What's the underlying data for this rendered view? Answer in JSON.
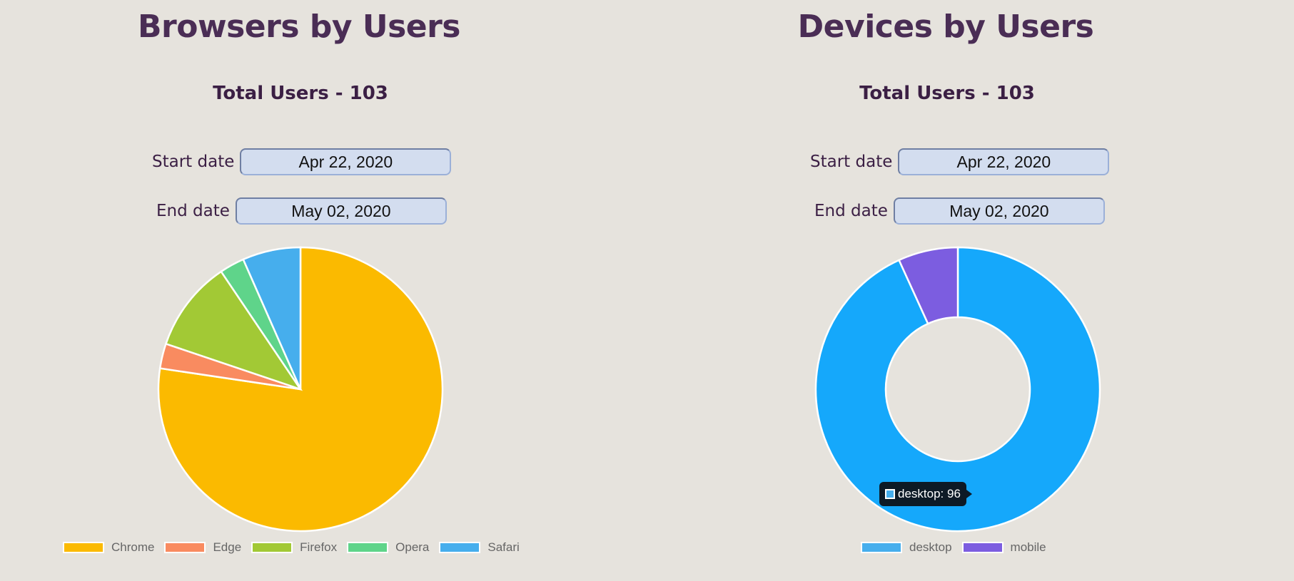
{
  "chart_data": [
    {
      "type": "pie",
      "title": "Browsers by Users",
      "subtitle": "Total Users - 103",
      "categories": [
        "Chrome",
        "Edge",
        "Firefox",
        "Opera",
        "Safari"
      ],
      "values": [
        82,
        3,
        11,
        3,
        7
      ],
      "colors": [
        "#fbba00",
        "#f98b60",
        "#a2c935",
        "#5fd48a",
        "#46aeed"
      ],
      "legend_position": "bottom"
    },
    {
      "type": "doughnut",
      "title": "Devices by Users",
      "subtitle": "Total Users - 103",
      "categories": [
        "desktop",
        "mobile"
      ],
      "values": [
        96,
        7
      ],
      "colors": [
        "#15a8fb",
        "#7c5de0"
      ],
      "legend_colors": [
        "#46aeed",
        "#7c5de0"
      ],
      "legend_position": "bottom",
      "tooltip": "desktop: 96"
    }
  ],
  "browsers": {
    "title": "Browsers by Users",
    "total": "Total Users - 103",
    "start_label": "Start date",
    "start_value": "Apr 22, 2020",
    "end_label": "End date",
    "end_value": "May 02, 2020"
  },
  "devices": {
    "title": "Devices by Users",
    "total": "Total Users - 103",
    "start_label": "Start date",
    "start_value": "Apr 22, 2020",
    "end_label": "End date",
    "end_value": "May 02, 2020",
    "tooltip": "desktop: 96"
  }
}
